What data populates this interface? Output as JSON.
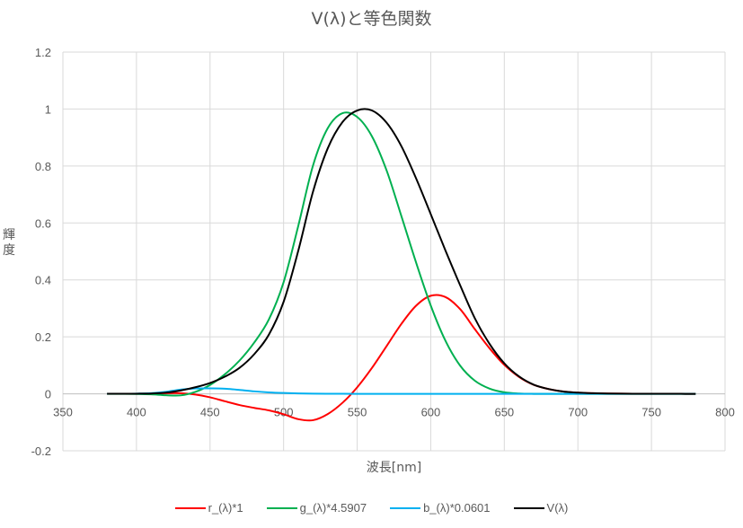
{
  "chart_data": {
    "type": "line",
    "title": "V(λ)と等色関数",
    "xlabel": "波長[nm]",
    "ylabel": "輝度",
    "xlim": [
      350,
      800
    ],
    "ylim": [
      -0.2,
      1.2
    ],
    "xticks": [
      "350",
      "400",
      "450",
      "500",
      "550",
      "600",
      "650",
      "700",
      "750",
      "800"
    ],
    "yticks": [
      "-0.2",
      "0",
      "0.2",
      "0.4",
      "0.6",
      "0.8",
      "1",
      "1.2"
    ],
    "grid": true,
    "legend_position": "bottom",
    "x": [
      380,
      390,
      400,
      410,
      420,
      430,
      440,
      450,
      460,
      470,
      480,
      490,
      500,
      510,
      520,
      530,
      540,
      550,
      560,
      570,
      580,
      590,
      600,
      610,
      620,
      630,
      640,
      650,
      660,
      670,
      680,
      690,
      700,
      710,
      720,
      730,
      740,
      750,
      760,
      770,
      780
    ],
    "series": [
      {
        "name": "r_(λ)*1",
        "color": "#ff0000",
        "values": [
          3e-05,
          0.0001,
          0.0003,
          0.00084,
          0.00211,
          0.00218,
          -0.00261,
          -0.01213,
          -0.02608,
          -0.03933,
          -0.04939,
          -0.05814,
          -0.07173,
          -0.08901,
          -0.09264,
          -0.07101,
          -0.03152,
          0.02279,
          0.0906,
          0.16768,
          0.24526,
          0.30928,
          0.34429,
          0.33971,
          0.29708,
          0.22677,
          0.15968,
          0.10167,
          0.05932,
          0.03149,
          0.01687,
          0.00819,
          0.0041,
          0.0021,
          0.00105,
          0.00052,
          0.00025,
          0.00012,
          6e-05,
          3e-05,
          1e-05
        ]
      },
      {
        "name": "g_(λ)*4.5907",
        "color": "#00b050",
        "values": [
          0,
          -0.0002,
          -0.0006,
          -0.0019,
          -0.005,
          -0.0055,
          0.0068,
          0.0311,
          0.0682,
          0.1165,
          0.1797,
          0.2612,
          0.3919,
          0.5904,
          0.8019,
          0.9327,
          0.9854,
          0.9722,
          0.9045,
          0.7844,
          0.6248,
          0.4616,
          0.3101,
          0.1863,
          0.0987,
          0.0459,
          0.0182,
          0.0053,
          0.0011,
          0,
          0,
          0,
          0,
          0,
          0,
          0,
          0,
          0,
          0,
          0,
          0
        ]
      },
      {
        "name": "b_(λ)*0.0601",
        "color": "#00b0f0",
        "values": [
          0.0001,
          0.0002,
          0.0007,
          0.0022,
          0.0069,
          0.0149,
          0.0188,
          0.019,
          0.0179,
          0.0138,
          0.0087,
          0.005,
          0.0029,
          0.0016,
          0.0007,
          0.0003,
          0.0001,
          0,
          0,
          0,
          0,
          0,
          0,
          0,
          0,
          0,
          0,
          0,
          0,
          0,
          0,
          0,
          0,
          0,
          0,
          0,
          0,
          0,
          0,
          0,
          0
        ]
      },
      {
        "name": "V(λ)",
        "color": "#000000",
        "values": [
          4e-05,
          0.00012,
          0.0004,
          0.0012,
          0.004,
          0.0116,
          0.023,
          0.038,
          0.06,
          0.091,
          0.139,
          0.208,
          0.323,
          0.503,
          0.71,
          0.862,
          0.954,
          0.995,
          0.995,
          0.952,
          0.87,
          0.757,
          0.631,
          0.503,
          0.381,
          0.265,
          0.175,
          0.107,
          0.061,
          0.032,
          0.017,
          0.0082,
          0.0041,
          0.0021,
          0.00105,
          0.00052,
          0.00025,
          0.00012,
          6e-05,
          3e-05,
          1.5e-05
        ]
      }
    ]
  }
}
